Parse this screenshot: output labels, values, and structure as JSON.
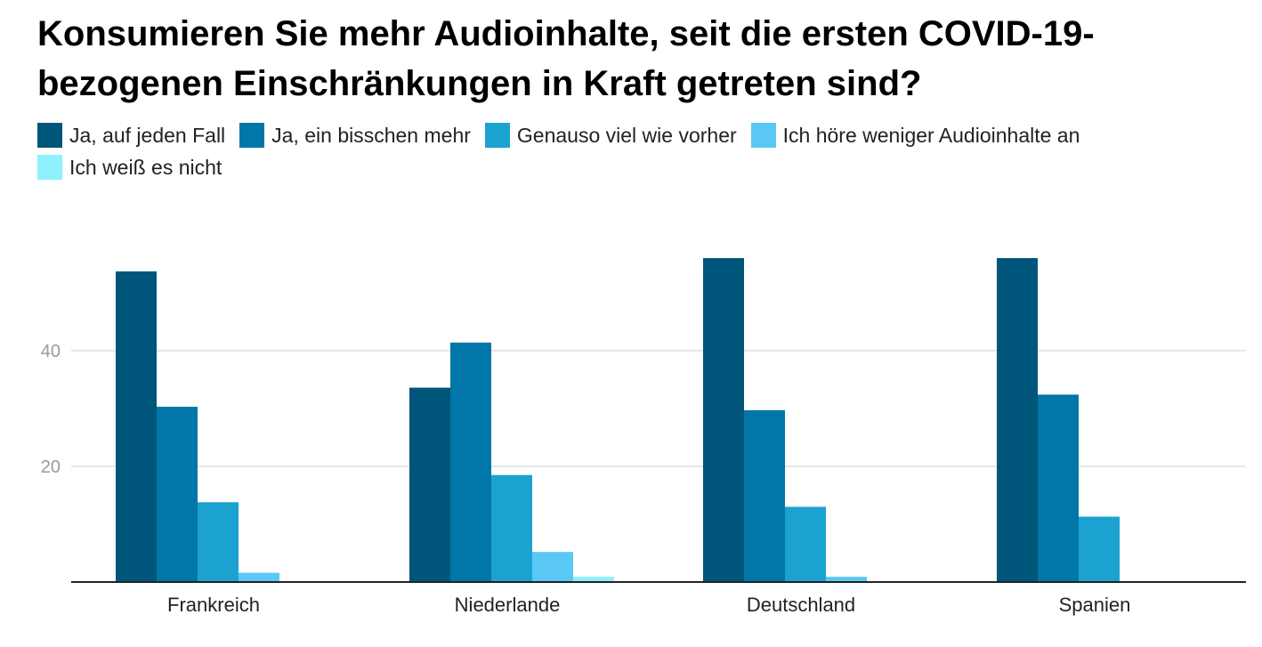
{
  "title": "Konsumieren Sie mehr Audioinhalte, seit die ersten COVID-19-bezogenen Einschränkungen in Kraft getreten sind?",
  "chart_data": {
    "type": "bar",
    "title": "Konsumieren Sie mehr Audioinhalte, seit die ersten COVID-19-bezogenen Einschränkungen in Kraft getreten sind?",
    "categories": [
      "Frankreich",
      "Niederlande",
      "Deutschland",
      "Spanien"
    ],
    "series": [
      {
        "name": "Ja, auf jeden Fall",
        "color": "#00557a",
        "values": [
          53.7,
          33.6,
          56.0,
          56.0
        ]
      },
      {
        "name": "Ja, ein bisschen mehr",
        "color": "#0077a8",
        "values": [
          30.3,
          41.4,
          29.7,
          32.4
        ]
      },
      {
        "name": "Genauso viel wie vorher",
        "color": "#1ba2d1",
        "values": [
          13.8,
          18.5,
          13.0,
          11.3
        ]
      },
      {
        "name": "Ich höre weniger Audioinhalte an",
        "color": "#5ac8f5",
        "values": [
          1.6,
          5.2,
          0.9,
          0
        ]
      },
      {
        "name": "Ich weiß es nicht",
        "color": "#8ef1fd",
        "values": [
          0,
          0.9,
          0,
          0
        ]
      }
    ],
    "yticks": [
      20,
      40
    ],
    "ylim": [
      0,
      56
    ],
    "grid": true,
    "legend": "top-left"
  }
}
